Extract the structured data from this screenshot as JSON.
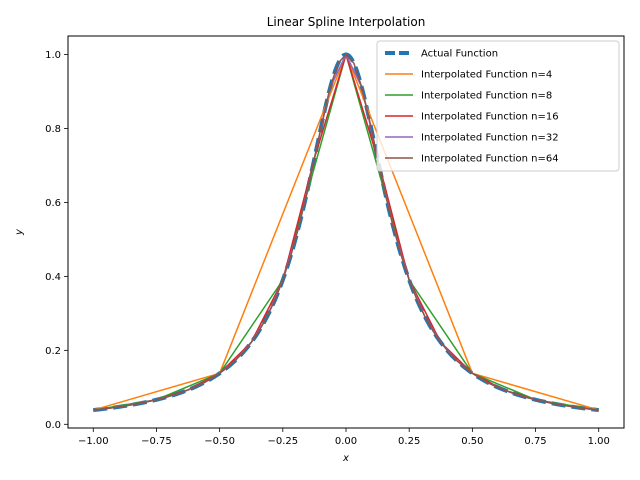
{
  "chart_data": {
    "type": "line",
    "title": "Linear Spline Interpolation",
    "xlabel": "x",
    "ylabel": "y",
    "xlim": [
      -1.1,
      1.1
    ],
    "ylim": [
      -0.01,
      1.05
    ],
    "xticks": [
      -1.0,
      -0.75,
      -0.5,
      -0.25,
      0.0,
      0.25,
      0.5,
      0.75,
      1.0
    ],
    "xtick_labels": [
      "−1.00",
      "−0.75",
      "−0.50",
      "−0.25",
      "0.00",
      "0.25",
      "0.50",
      "0.75",
      "1.00"
    ],
    "yticks": [
      0.0,
      0.2,
      0.4,
      0.6,
      0.8,
      1.0
    ],
    "ytick_labels": [
      "0.0",
      "0.2",
      "0.4",
      "0.6",
      "0.8",
      "1.0"
    ],
    "grid": false,
    "legend_position": "top-right",
    "function": "1/(1+25x^2)",
    "series": [
      {
        "name": "Actual Function",
        "color": "#1f77b4",
        "style": "dashed-thick",
        "samples": 401
      },
      {
        "name": "Interpolated Function n=4",
        "color": "#ff7f0e",
        "style": "solid",
        "n": 4
      },
      {
        "name": "Interpolated Function n=8",
        "color": "#2ca02c",
        "style": "solid",
        "n": 8
      },
      {
        "name": "Interpolated Function n=16",
        "color": "#d62728",
        "style": "solid",
        "n": 16
      },
      {
        "name": "Interpolated Function n=32",
        "color": "#9467bd",
        "style": "solid",
        "n": 32
      },
      {
        "name": "Interpolated Function n=64",
        "color": "#8c564b",
        "style": "solid",
        "n": 64
      }
    ]
  }
}
